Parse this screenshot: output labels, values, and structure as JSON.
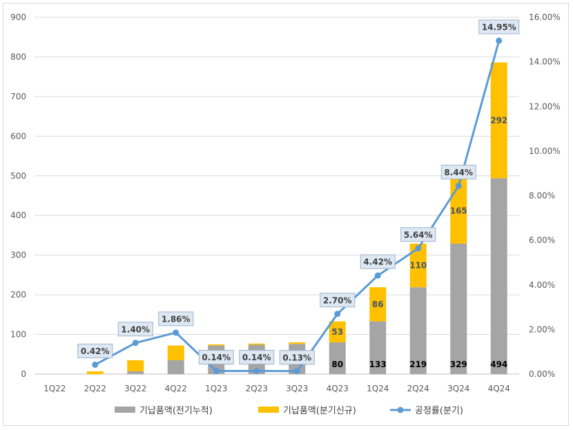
{
  "chart_data": {
    "type": "bar",
    "categories": [
      "1Q22",
      "2Q22",
      "3Q22",
      "4Q22",
      "1Q23",
      "2Q23",
      "3Q23",
      "4Q23",
      "1Q24",
      "2Q24",
      "3Q24",
      "4Q24"
    ],
    "series": [
      {
        "name": "기납품액(전기누적)",
        "type": "bar",
        "stack": "s",
        "color": "#a5a5a5",
        "values": [
          0,
          0,
          7,
          35,
          72,
          74,
          76,
          80,
          133,
          219,
          329,
          494
        ],
        "labels": [
          "",
          "",
          "",
          "",
          "",
          "",
          "",
          "80",
          "133",
          "219",
          "329",
          "494"
        ]
      },
      {
        "name": "기납품액(분기신규)",
        "type": "bar",
        "stack": "s",
        "color": "#ffc000",
        "values": [
          0,
          7,
          28,
          37,
          3,
          3,
          4,
          53,
          86,
          110,
          165,
          292
        ],
        "labels": [
          "",
          "",
          "",
          "",
          "",
          "",
          "",
          "53",
          "86",
          "110",
          "165",
          "292"
        ]
      },
      {
        "name": "공정률(분기)",
        "type": "line",
        "axis": "right",
        "color": "#5b9bd5",
        "values": [
          null,
          0.42,
          1.4,
          1.86,
          0.14,
          0.14,
          0.13,
          2.7,
          4.42,
          5.64,
          8.44,
          14.95
        ],
        "labels": [
          "",
          "0.42%",
          "1.40%",
          "1.86%",
          "0.14%",
          "0.14%",
          "0.13%",
          "2.70%",
          "4.42%",
          "5.64%",
          "8.44%",
          "14.95%"
        ]
      }
    ],
    "ylim": [
      0,
      900
    ],
    "yticks": [
      "0",
      "100",
      "200",
      "300",
      "400",
      "500",
      "600",
      "700",
      "800",
      "900"
    ],
    "y2lim": [
      0,
      16
    ],
    "y2ticks": [
      "0.00%",
      "2.00%",
      "4.00%",
      "6.00%",
      "8.00%",
      "10.00%",
      "12.00%",
      "14.00%",
      "16.00%"
    ],
    "grid": true,
    "legend": "bottom"
  }
}
